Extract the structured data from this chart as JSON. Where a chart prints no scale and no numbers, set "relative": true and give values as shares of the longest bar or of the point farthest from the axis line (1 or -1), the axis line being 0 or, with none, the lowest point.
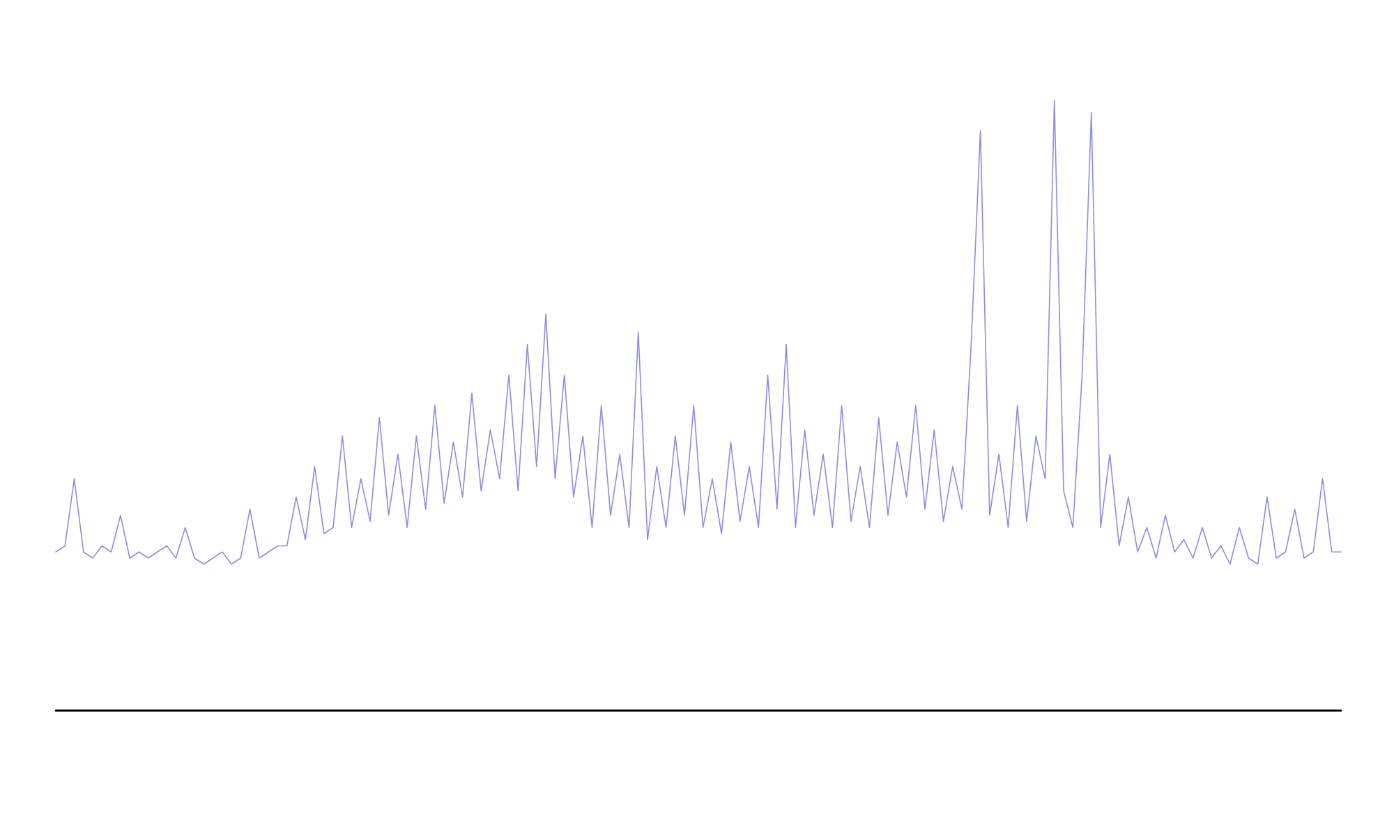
{
  "chart_data": {
    "type": "line",
    "relative": true,
    "grid": false,
    "marker": "none",
    "line_style": "solid",
    "categories": [
      null,
      null,
      null,
      null,
      null,
      null,
      null,
      null,
      null,
      null,
      null,
      null,
      null,
      null,
      null,
      null,
      null,
      null,
      null,
      null,
      null,
      null,
      null,
      null,
      null,
      null,
      null,
      null,
      null,
      null,
      null,
      null,
      null,
      null,
      null,
      null,
      null,
      null,
      null,
      null,
      null,
      null,
      null,
      null,
      null,
      null,
      null,
      null,
      null,
      null,
      null,
      null,
      null,
      null,
      null,
      null,
      null,
      null,
      null,
      null,
      null,
      null,
      null,
      null,
      null,
      null,
      null,
      null,
      null,
      null,
      null,
      null,
      null,
      null,
      null,
      null,
      null,
      null,
      null,
      null,
      null,
      null,
      null,
      null,
      null,
      null,
      null,
      null,
      null,
      null,
      null,
      null,
      null,
      null,
      null,
      null,
      null,
      null,
      null,
      null,
      null,
      null,
      null,
      null,
      null,
      null,
      null,
      null,
      null,
      null,
      null,
      null,
      null,
      null,
      null,
      null,
      null,
      null,
      null,
      null,
      null,
      null,
      null,
      null,
      null,
      null,
      null,
      null,
      null,
      null,
      null,
      null,
      null,
      null,
      null,
      null,
      null,
      null,
      null,
      null
    ],
    "series": [
      {
        "color": "#8c8ce8",
        "values": [
          0.26,
          0.27,
          0.38,
          0.26,
          0.25,
          0.27,
          0.26,
          0.32,
          0.25,
          0.26,
          0.25,
          0.26,
          0.27,
          0.25,
          0.3,
          0.25,
          0.24,
          0.25,
          0.26,
          0.24,
          0.25,
          0.33,
          0.25,
          0.26,
          0.27,
          0.27,
          0.35,
          0.28,
          0.4,
          0.29,
          0.3,
          0.45,
          0.3,
          0.38,
          0.31,
          0.48,
          0.32,
          0.42,
          0.3,
          0.45,
          0.33,
          0.5,
          0.34,
          0.44,
          0.35,
          0.52,
          0.36,
          0.46,
          0.38,
          0.55,
          0.36,
          0.6,
          0.4,
          0.65,
          0.38,
          0.55,
          0.35,
          0.45,
          0.3,
          0.5,
          0.32,
          0.42,
          0.3,
          0.62,
          0.28,
          0.4,
          0.3,
          0.45,
          0.32,
          0.5,
          0.3,
          0.38,
          0.29,
          0.44,
          0.31,
          0.4,
          0.3,
          0.55,
          0.33,
          0.6,
          0.3,
          0.46,
          0.32,
          0.42,
          0.3,
          0.5,
          0.31,
          0.4,
          0.3,
          0.48,
          0.32,
          0.44,
          0.35,
          0.5,
          0.33,
          0.46,
          0.31,
          0.4,
          0.33,
          0.6,
          0.95,
          0.32,
          0.42,
          0.3,
          0.5,
          0.31,
          0.45,
          0.38,
          1.0,
          0.36,
          0.3,
          0.55,
          0.98,
          0.3,
          0.42,
          0.27,
          0.35,
          0.26,
          0.3,
          0.25,
          0.32,
          0.26,
          0.28,
          0.25,
          0.3,
          0.25,
          0.27,
          0.24,
          0.3,
          0.25,
          0.24,
          0.35,
          0.25,
          0.26,
          0.33,
          0.25,
          0.26,
          0.38,
          0.26,
          0.26
        ]
      }
    ]
  }
}
